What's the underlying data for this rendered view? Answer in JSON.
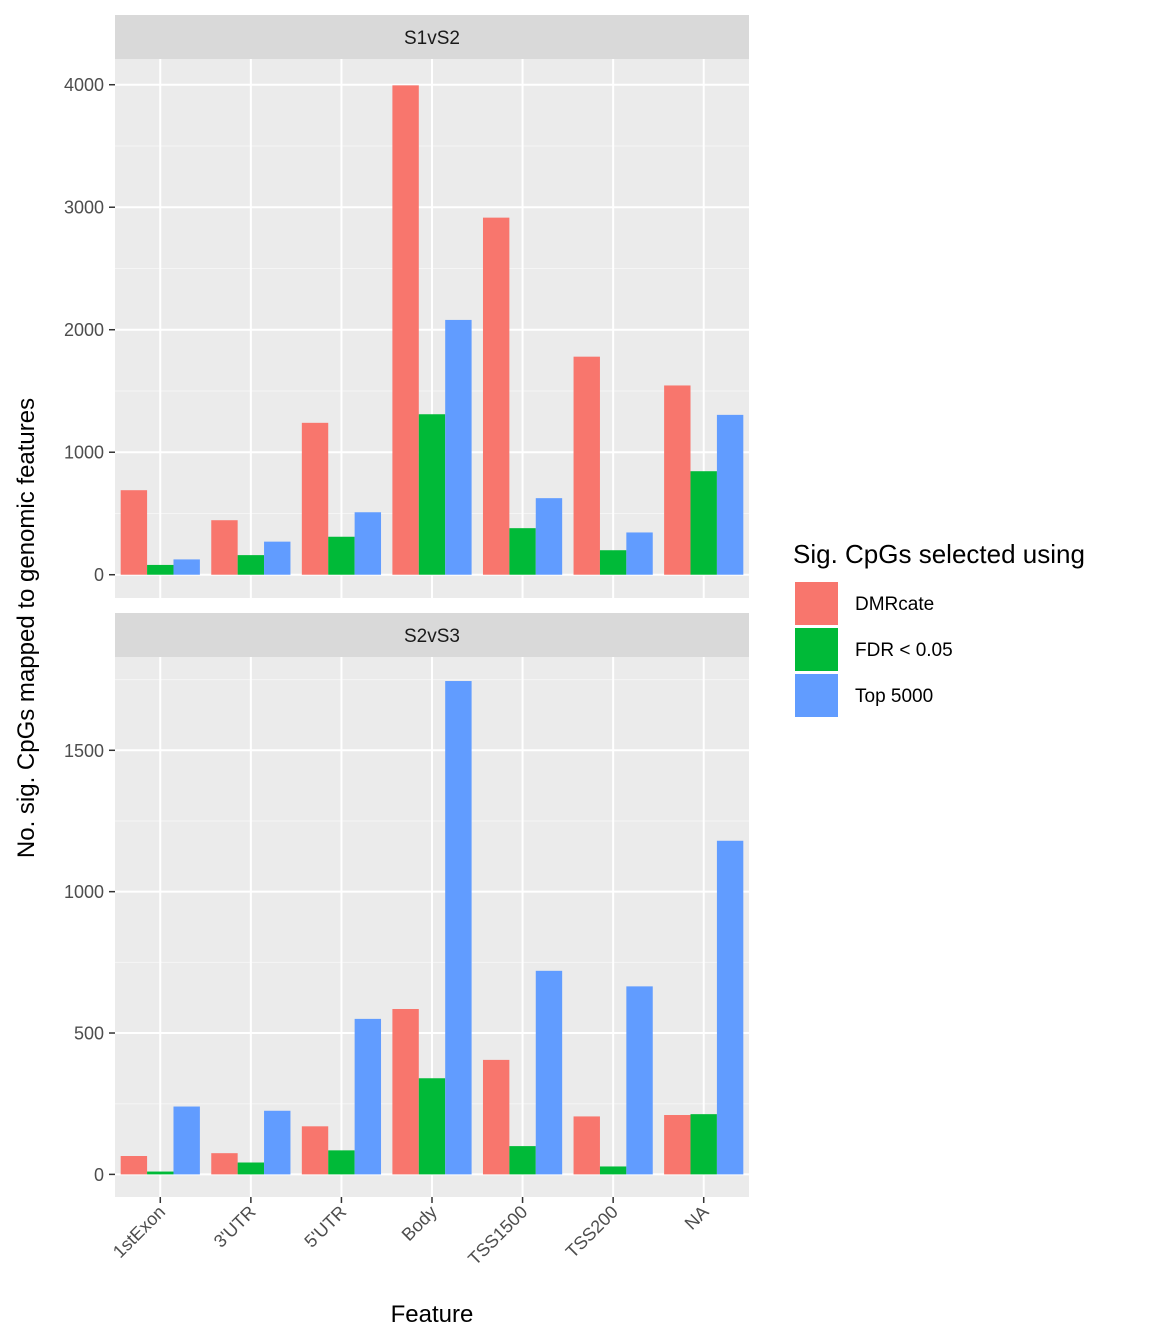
{
  "chart_data": {
    "type": "bar",
    "xlabel": "Feature",
    "ylabel": "No. sig. CpGs mapped to genomic features",
    "categories": [
      "1stExon",
      "3'UTR",
      "5'UTR",
      "Body",
      "TSS1500",
      "TSS200",
      "NA"
    ],
    "legend": {
      "title": "Sig. CpGs selected using",
      "position": "right"
    },
    "series_meta": [
      {
        "name": "DMRcate",
        "color": "#F8766D"
      },
      {
        "name": "FDR < 0.05",
        "color": "#00BA38"
      },
      {
        "name": "Top 5000",
        "color": "#619CFF"
      }
    ],
    "grid": true,
    "panels": [
      {
        "title": "S1vS2",
        "ylim": [
          -190,
          4210
        ],
        "yticks": [
          0,
          1000,
          2000,
          3000,
          4000
        ],
        "yticklabels": [
          "0",
          "1000",
          "2000",
          "3000",
          "4000"
        ],
        "series": [
          {
            "name": "DMRcate",
            "values": [
              690,
              445,
              1240,
              3995,
              2915,
              1780,
              1545
            ]
          },
          {
            "name": "FDR < 0.05",
            "values": [
              80,
              160,
              310,
              1310,
              380,
              200,
              845
            ]
          },
          {
            "name": "Top 5000",
            "values": [
              125,
              270,
              510,
              2080,
              625,
              345,
              1305
            ]
          }
        ]
      },
      {
        "title": "S2vS3",
        "ylim": [
          -80,
          1830
        ],
        "yticks": [
          0,
          500,
          1000,
          1500
        ],
        "yticklabels": [
          "0",
          "500",
          "1000",
          "1500"
        ],
        "series": [
          {
            "name": "DMRcate",
            "values": [
              65,
              75,
              170,
              585,
              405,
              205,
              210
            ]
          },
          {
            "name": "FDR < 0.05",
            "values": [
              10,
              42,
              85,
              340,
              100,
              28,
              213
            ]
          },
          {
            "name": "Top 5000",
            "values": [
              240,
              225,
              550,
              1745,
              720,
              665,
              1180
            ]
          }
        ]
      }
    ]
  }
}
